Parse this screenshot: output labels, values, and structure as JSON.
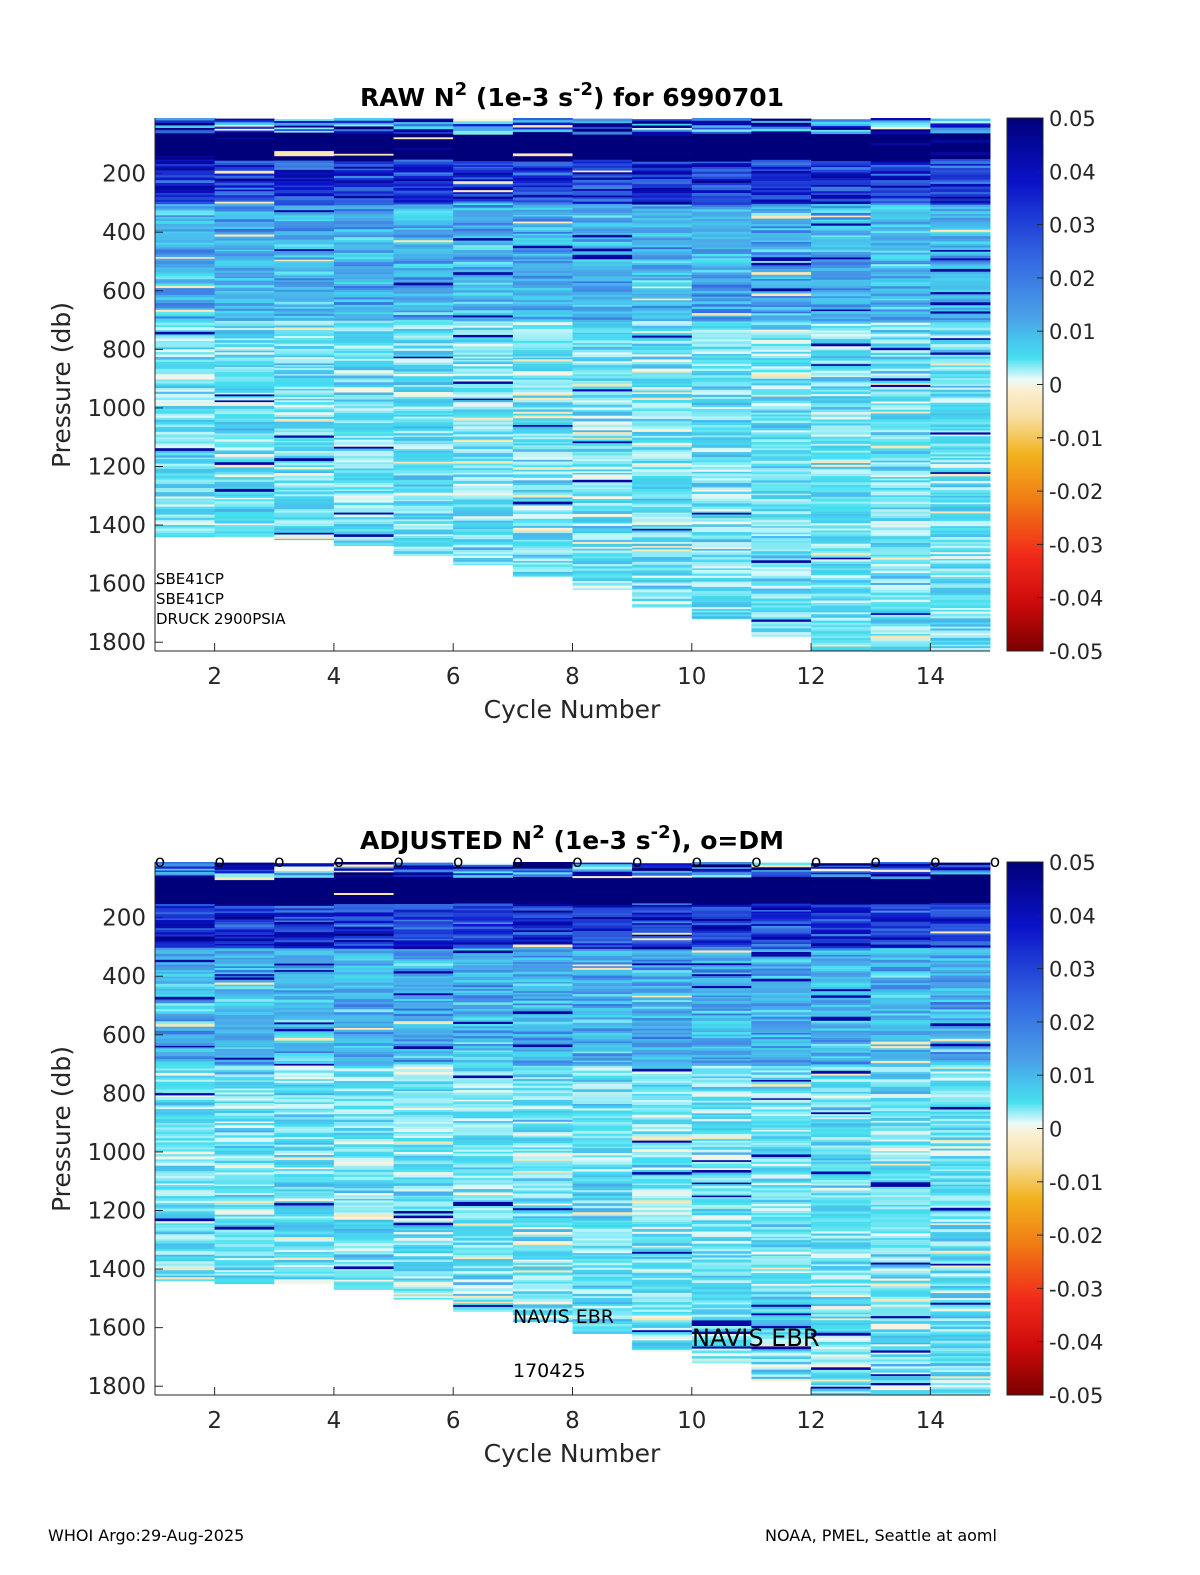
{
  "chart_data": [
    {
      "type": "heatmap",
      "title": "RAW N² (1e-3 s⁻²) for 6990701",
      "title_parts": {
        "prefix": "RAW N",
        "sup1": "2",
        "mid": " (1e-3 s",
        "sup2": "-2",
        "suffix": ") for 6990701"
      },
      "xlabel": "Cycle Number",
      "ylabel": "Pressure (db)",
      "xlim": [
        1,
        15
      ],
      "ylim": [
        1830,
        10
      ],
      "xticks": [
        "2",
        "4",
        "6",
        "8",
        "10",
        "12",
        "14"
      ],
      "yticks": [
        "200",
        "400",
        "600",
        "800",
        "1000",
        "1200",
        "1400",
        "1600",
        "1800"
      ],
      "cycles": [
        1,
        2,
        3,
        4,
        5,
        6,
        7,
        8,
        9,
        10,
        11,
        12,
        13,
        14
      ],
      "max_pressure": [
        1440,
        1440,
        1450,
        1470,
        1505,
        1535,
        1575,
        1620,
        1680,
        1720,
        1780,
        1830,
        1830,
        1830
      ],
      "annotations": [
        "SBE41CP",
        "SBE41CP",
        "DRUCK 2900PSIA"
      ],
      "colorbar": {
        "range": [
          -0.05,
          0.05
        ],
        "ticks": [
          "0.05",
          "0.04",
          "0.03",
          "0.02",
          "0.01",
          "0",
          "-0.01",
          "-0.02",
          "-0.03",
          "-0.04",
          "-0.05"
        ]
      }
    },
    {
      "type": "heatmap",
      "title": "ADJUSTED N² (1e-3 s⁻²), o=DM",
      "title_parts": {
        "prefix": "ADJUSTED N",
        "sup1": "2",
        "mid": " (1e-3 s",
        "sup2": "-2",
        "suffix": "), o=DM"
      },
      "xlabel": "Cycle Number",
      "ylabel": "Pressure (db)",
      "xlim": [
        1,
        15
      ],
      "ylim": [
        1830,
        10
      ],
      "xticks": [
        "2",
        "4",
        "6",
        "8",
        "10",
        "12",
        "14"
      ],
      "yticks": [
        "200",
        "400",
        "600",
        "800",
        "1000",
        "1200",
        "1400",
        "1600",
        "1800"
      ],
      "cycles": [
        1,
        2,
        3,
        4,
        5,
        6,
        7,
        8,
        9,
        10,
        11,
        12,
        13,
        14
      ],
      "max_pressure": [
        1440,
        1450,
        1450,
        1470,
        1505,
        1545,
        1580,
        1620,
        1680,
        1720,
        1780,
        1830,
        1830,
        1830
      ],
      "dm_marker": "o",
      "dm_cycles": [
        1,
        2,
        3,
        4,
        5,
        6,
        7,
        8,
        9,
        10,
        11,
        12,
        13,
        14,
        15
      ],
      "annotations": [
        "NAVIS EBR",
        "170425"
      ],
      "annotation_large": "NAVIS EBR",
      "colorbar": {
        "range": [
          -0.05,
          0.05
        ],
        "ticks": [
          "0.05",
          "0.04",
          "0.03",
          "0.02",
          "0.01",
          "0",
          "-0.01",
          "-0.02",
          "-0.03",
          "-0.04",
          "-0.05"
        ]
      }
    }
  ],
  "footer": {
    "left": "WHOI Argo:29-Aug-2025",
    "right": "NOAA, PMEL, Seattle at aoml"
  }
}
